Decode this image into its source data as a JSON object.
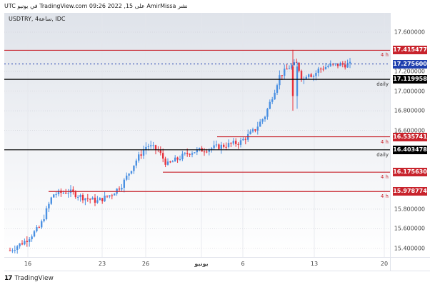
{
  "header": {
    "attribution": "نشر AmirMissa على TradingView.com 09:26 2022 ,15 في يونيو UTC"
  },
  "chart": {
    "symbol_line": "USDTRY, 4ساعة, IDC"
  },
  "footer": {
    "brand": "TradingView",
    "logo": "17"
  },
  "yaxis": {
    "ticks": [
      "17.600000",
      "17.200000",
      "17.000000",
      "16.800000",
      "16.600000",
      "15.800000",
      "15.600000",
      "15.400000"
    ]
  },
  "xaxis": {
    "ticks": [
      "16",
      "23",
      "26",
      "يونيو",
      "6",
      "13",
      "20"
    ]
  },
  "price_labels": [
    {
      "value": "17.415477",
      "color": "#c8232c",
      "tag": "4 h"
    },
    {
      "value": "17.275600",
      "color": "#1e3fae",
      "tag": ""
    },
    {
      "value": "17.119958",
      "color": "#000000",
      "tag": "daily"
    },
    {
      "value": "16.535741",
      "color": "#c8232c",
      "tag": "4 h"
    },
    {
      "value": "16.403478",
      "color": "#000000",
      "tag": "daily"
    },
    {
      "value": "16.175630",
      "color": "#c8232c",
      "tag": "4 h"
    },
    {
      "value": "15.978774",
      "color": "#c8232c",
      "tag": "4 h"
    }
  ],
  "colors": {
    "up": "#4a90e2",
    "down": "#e8323c",
    "resistance_4h": "#c8232c",
    "daily": "#000000",
    "current_price": "#1e3fae"
  },
  "chart_data": {
    "type": "candlestick",
    "title": "USDTRY, 4h, IDC",
    "xlabel": "",
    "ylabel": "",
    "ylim": [
      15.3,
      17.75
    ],
    "x_ticks": [
      "16",
      "23",
      "26",
      "June",
      "6",
      "13",
      "20"
    ],
    "y_ticks": [
      15.4,
      15.6,
      15.8,
      16.6,
      16.8,
      17.0,
      17.2,
      17.6
    ],
    "current_price": 17.2756,
    "horizontal_levels": [
      {
        "price": 17.415477,
        "label": "4 h",
        "color": "#c8232c"
      },
      {
        "price": 17.119958,
        "label": "daily",
        "color": "#000000"
      },
      {
        "price": 16.535741,
        "label": "4 h",
        "color": "#c8232c"
      },
      {
        "price": 16.403478,
        "label": "daily",
        "color": "#000000"
      },
      {
        "price": 16.17563,
        "label": "4 h",
        "color": "#c8232c"
      },
      {
        "price": 15.978774,
        "label": "4 h",
        "color": "#c8232c"
      }
    ],
    "approx_close_path": [
      {
        "x": "May 13",
        "close": 15.38
      },
      {
        "x": "May 16",
        "close": 15.55
      },
      {
        "x": "May 18",
        "close": 15.9
      },
      {
        "x": "May 20",
        "close": 15.95
      },
      {
        "x": "May 23",
        "close": 15.9
      },
      {
        "x": "May 25",
        "close": 16.35
      },
      {
        "x": "May 26",
        "close": 16.45
      },
      {
        "x": "May 27",
        "close": 16.2
      },
      {
        "x": "May 30",
        "close": 16.4
      },
      {
        "x": "Jun 1",
        "close": 16.42
      },
      {
        "x": "Jun 3",
        "close": 16.5
      },
      {
        "x": "Jun 6",
        "close": 16.6
      },
      {
        "x": "Jun 8",
        "close": 17.15
      },
      {
        "x": "Jun 9",
        "close": 17.25
      },
      {
        "x": "Jun 10",
        "close": 17.05
      },
      {
        "x": "Jun 13",
        "close": 17.25
      },
      {
        "x": "Jun 15",
        "close": 17.27
      }
    ]
  }
}
